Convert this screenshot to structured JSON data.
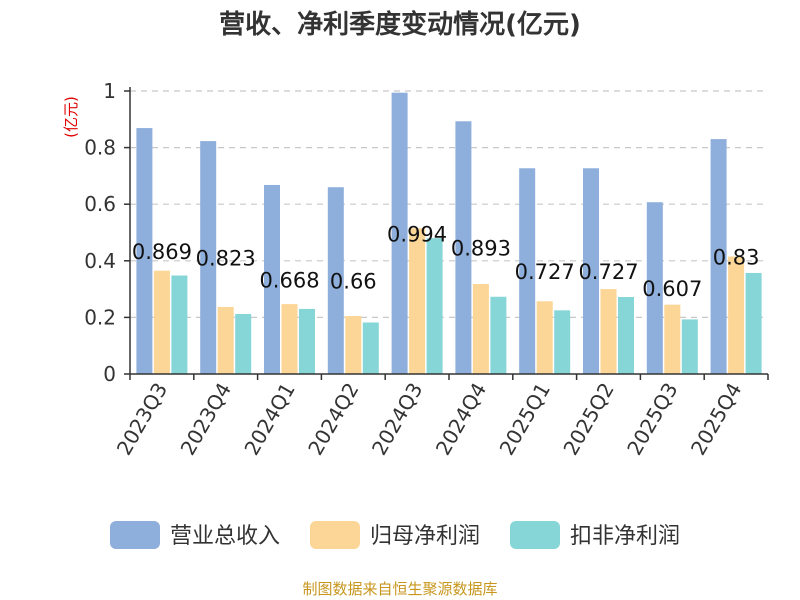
{
  "chart_data": {
    "type": "bar",
    "title": "营收、净利季度变动情况(亿元)",
    "ylabel": "(亿元)",
    "ylim": [
      0,
      1
    ],
    "yticks": [
      "0",
      "0.2",
      "0.4",
      "0.6",
      "0.8",
      "1"
    ],
    "grid": true,
    "legend_position": "bottom",
    "categories": [
      "2023Q3",
      "2023Q4",
      "2024Q1",
      "2024Q2",
      "2024Q3",
      "2024Q4",
      "2025Q1",
      "2025Q2",
      "2025Q3",
      "2025Q4"
    ],
    "series": [
      {
        "name": "营业总收入",
        "color": "#8eaedb",
        "values": [
          0.869,
          0.823,
          0.668,
          0.66,
          0.994,
          0.893,
          0.727,
          0.727,
          0.607,
          0.83
        ],
        "labels": [
          "0.869",
          "0.823",
          "0.668",
          "0.66",
          "0.994",
          "0.893",
          "0.727",
          "0.727",
          "0.607",
          "0.83"
        ]
      },
      {
        "name": "归母净利润",
        "color": "#fcd696",
        "values": [
          0.365,
          0.237,
          0.247,
          0.205,
          0.515,
          0.318,
          0.257,
          0.3,
          0.245,
          0.415
        ]
      },
      {
        "name": "扣非净利润",
        "color": "#86d6d8",
        "values": [
          0.348,
          0.212,
          0.23,
          0.182,
          0.48,
          0.273,
          0.225,
          0.272,
          0.193,
          0.357
        ]
      }
    ]
  },
  "source_text": "制图数据来自恒生聚源数据库"
}
